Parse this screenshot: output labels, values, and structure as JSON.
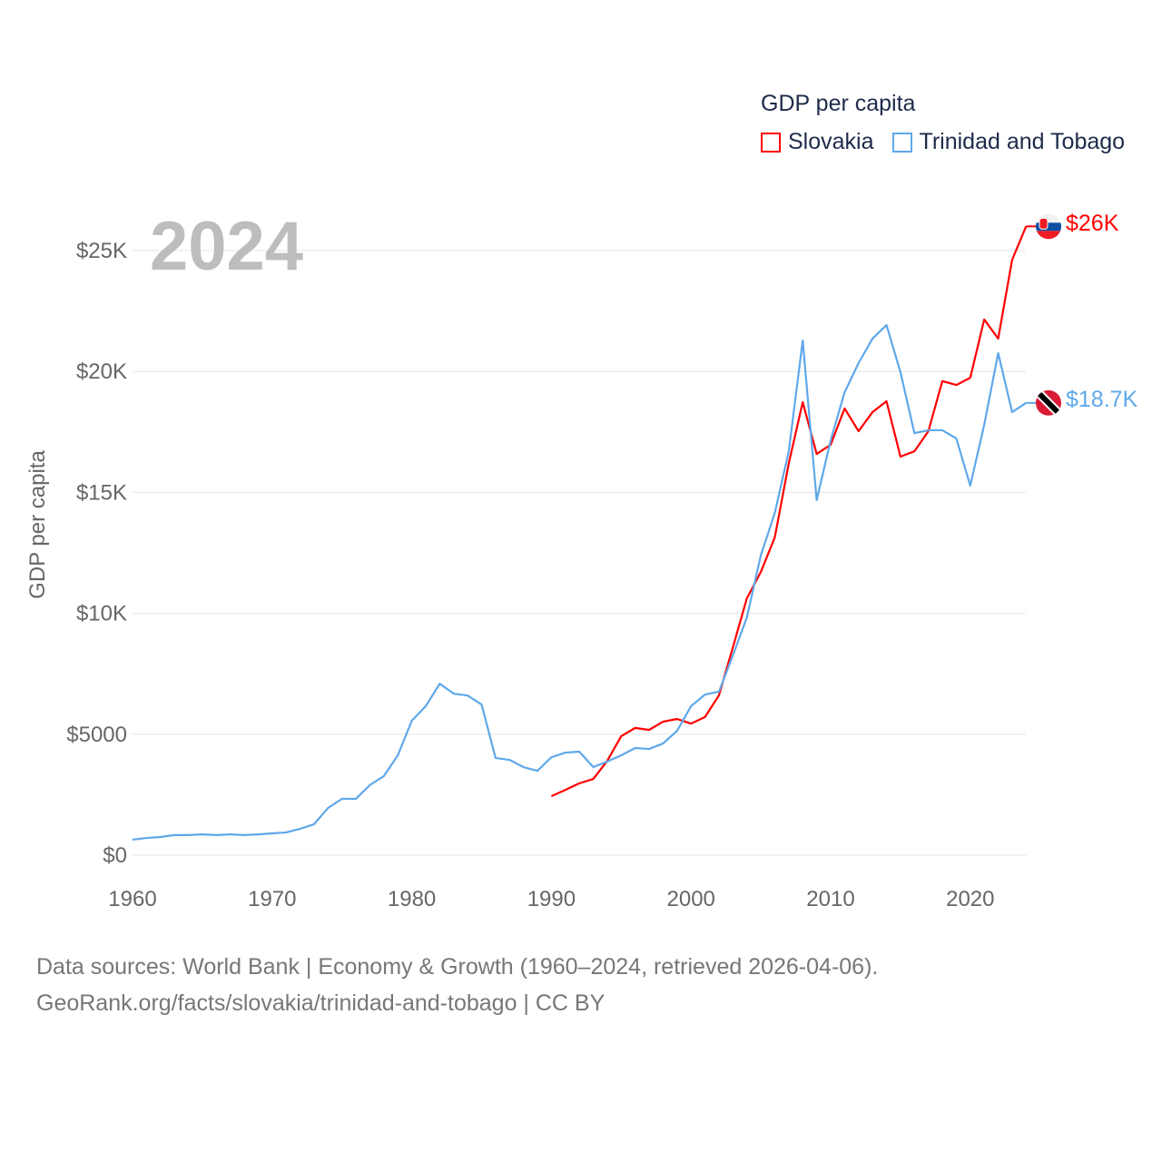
{
  "chart_data": {
    "type": "line",
    "title": "GDP per capita",
    "year_label": "2024",
    "ylabel": "GDP per capita",
    "xlabel": "",
    "xlim": [
      1960,
      2024
    ],
    "ylim": [
      0,
      27000
    ],
    "x_ticks": [
      "1960",
      "1970",
      "1980",
      "1990",
      "2000",
      "2010",
      "2020"
    ],
    "x_tick_values": [
      1960,
      1970,
      1980,
      1990,
      2000,
      2010,
      2020
    ],
    "y_ticks": [
      "$0",
      "$5000",
      "$10K",
      "$15K",
      "$20K",
      "$25K"
    ],
    "y_tick_values": [
      0,
      5000,
      10000,
      15000,
      20000,
      25000
    ],
    "grid": true,
    "legend_placement": "top-right",
    "series": [
      {
        "name": "Slovakia",
        "color": "#ff0000",
        "end_label": "$26K",
        "flag": "slovakia-flag",
        "x": [
          1990,
          1991,
          1992,
          1993,
          1994,
          1995,
          1996,
          1997,
          1998,
          1999,
          2000,
          2001,
          2002,
          2003,
          2004,
          2005,
          2006,
          2007,
          2008,
          2009,
          2010,
          2011,
          2012,
          2013,
          2014,
          2015,
          2016,
          2017,
          2018,
          2019,
          2020,
          2021,
          2022,
          2023,
          2024
        ],
        "values": [
          2440,
          2700,
          2970,
          3150,
          3900,
          4920,
          5260,
          5180,
          5520,
          5630,
          5440,
          5710,
          6610,
          8600,
          10620,
          11710,
          13140,
          16200,
          18730,
          16590,
          16970,
          18470,
          17530,
          18320,
          18770,
          16480,
          16700,
          17530,
          19600,
          19440,
          19740,
          22150,
          21360,
          24620,
          26000
        ]
      },
      {
        "name": "Trinidad and Tobago",
        "color": "#5fa8ea",
        "end_label": "$18.7K",
        "flag": "trinidad-and-tobago-flag",
        "x": [
          1960,
          1961,
          1962,
          1963,
          1964,
          1965,
          1966,
          1967,
          1968,
          1969,
          1970,
          1971,
          1972,
          1973,
          1974,
          1975,
          1976,
          1977,
          1978,
          1979,
          1980,
          1981,
          1982,
          1983,
          1984,
          1985,
          1986,
          1987,
          1988,
          1989,
          1990,
          1991,
          1992,
          1993,
          1994,
          1995,
          1996,
          1997,
          1998,
          1999,
          2000,
          2001,
          2002,
          2003,
          2004,
          2005,
          2006,
          2007,
          2008,
          2009,
          2010,
          2011,
          2012,
          2013,
          2014,
          2015,
          2016,
          2017,
          2018,
          2019,
          2020,
          2021,
          2022,
          2023,
          2024
        ],
        "values": [
          640,
          710,
          750,
          830,
          830,
          860,
          830,
          860,
          830,
          860,
          900,
          940,
          1090,
          1280,
          1950,
          2330,
          2330,
          2900,
          3270,
          4130,
          5560,
          6160,
          7090,
          6680,
          6600,
          6230,
          4020,
          3940,
          3640,
          3490,
          4050,
          4240,
          4280,
          3640,
          3870,
          4130,
          4430,
          4390,
          4620,
          5140,
          6160,
          6640,
          6760,
          8260,
          9830,
          12400,
          14150,
          16700,
          21280,
          14680,
          17150,
          19140,
          20350,
          21360,
          21920,
          19970,
          17450,
          17570,
          17570,
          17230,
          15280,
          17800,
          20760,
          18320,
          18700
        ]
      }
    ]
  },
  "footer": {
    "line1": "Data sources: World Bank | Economy & Growth (1960–2024, retrieved 2026-04-06).",
    "line2": "GeoRank.org/facts/slovakia/trinidad-and-tobago | CC BY"
  }
}
